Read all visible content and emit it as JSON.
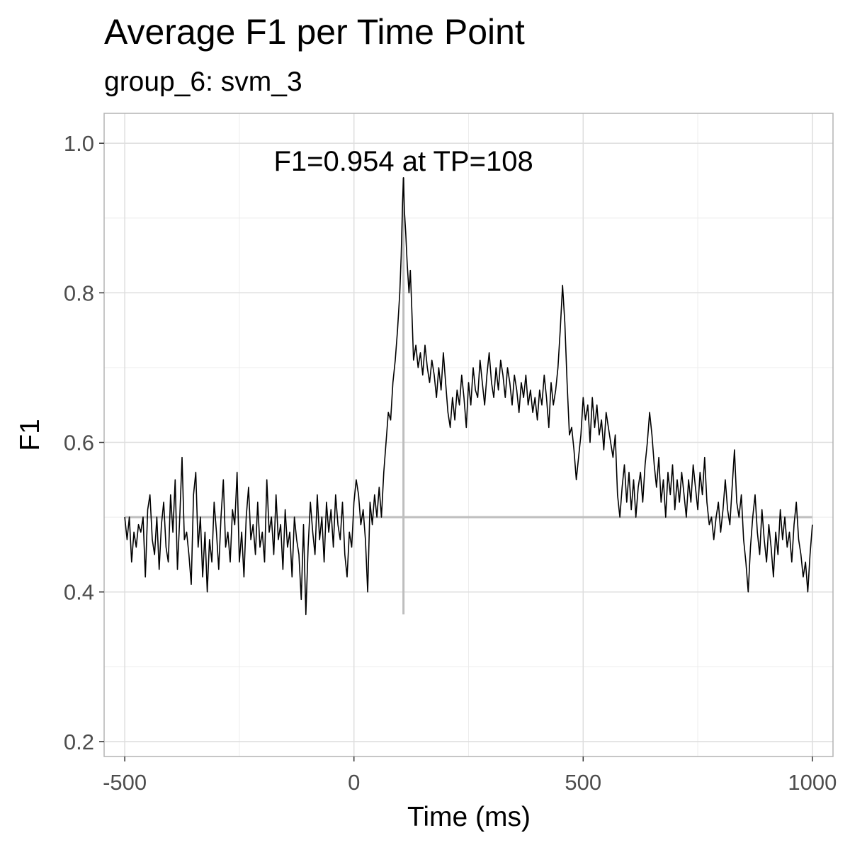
{
  "chart_data": {
    "type": "line",
    "title": "Average F1 per Time Point",
    "subtitle": "group_6: svm_3",
    "xlabel": "Time (ms)",
    "ylabel": "F1",
    "xlim": [
      -545,
      1045
    ],
    "ylim": [
      0.18,
      1.04
    ],
    "x_ticks": [
      -500,
      0,
      500,
      1000
    ],
    "x_tick_labels": [
      "-500",
      "0",
      "500",
      "1000"
    ],
    "y_ticks": [
      0.2,
      0.4,
      0.6,
      0.8,
      1.0
    ],
    "y_tick_labels": [
      "0.2",
      "0.4",
      "0.6",
      "0.8",
      "1.0"
    ],
    "grid": true,
    "reference_lines": {
      "chance_level": 0.5,
      "peak_time": 108,
      "peak_line_bottom": 0.37
    },
    "annotation": "F1=0.954 at TP=108",
    "series": [
      {
        "line_color": "#000000",
        "points": [
          [
            -500,
            0.5
          ],
          [
            -495,
            0.47
          ],
          [
            -490,
            0.5
          ],
          [
            -485,
            0.44
          ],
          [
            -480,
            0.48
          ],
          [
            -475,
            0.46
          ],
          [
            -470,
            0.49
          ],
          [
            -465,
            0.48
          ],
          [
            -460,
            0.5
          ],
          [
            -455,
            0.42
          ],
          [
            -450,
            0.51
          ],
          [
            -445,
            0.53
          ],
          [
            -440,
            0.47
          ],
          [
            -435,
            0.45
          ],
          [
            -430,
            0.5
          ],
          [
            -425,
            0.43
          ],
          [
            -420,
            0.49
          ],
          [
            -415,
            0.52
          ],
          [
            -410,
            0.46
          ],
          [
            -405,
            0.44
          ],
          [
            -400,
            0.53
          ],
          [
            -395,
            0.48
          ],
          [
            -390,
            0.55
          ],
          [
            -385,
            0.43
          ],
          [
            -380,
            0.5
          ],
          [
            -375,
            0.58
          ],
          [
            -370,
            0.47
          ],
          [
            -365,
            0.48
          ],
          [
            -360,
            0.45
          ],
          [
            -355,
            0.41
          ],
          [
            -350,
            0.53
          ],
          [
            -345,
            0.56
          ],
          [
            -340,
            0.46
          ],
          [
            -335,
            0.5
          ],
          [
            -330,
            0.42
          ],
          [
            -325,
            0.48
          ],
          [
            -320,
            0.4
          ],
          [
            -315,
            0.47
          ],
          [
            -310,
            0.44
          ],
          [
            -305,
            0.52
          ],
          [
            -300,
            0.48
          ],
          [
            -295,
            0.43
          ],
          [
            -290,
            0.5
          ],
          [
            -285,
            0.55
          ],
          [
            -280,
            0.46
          ],
          [
            -275,
            0.48
          ],
          [
            -270,
            0.44
          ],
          [
            -265,
            0.51
          ],
          [
            -260,
            0.49
          ],
          [
            -255,
            0.56
          ],
          [
            -250,
            0.44
          ],
          [
            -245,
            0.48
          ],
          [
            -240,
            0.42
          ],
          [
            -235,
            0.5
          ],
          [
            -230,
            0.54
          ],
          [
            -225,
            0.47
          ],
          [
            -220,
            0.49
          ],
          [
            -215,
            0.45
          ],
          [
            -210,
            0.52
          ],
          [
            -205,
            0.46
          ],
          [
            -200,
            0.48
          ],
          [
            -195,
            0.44
          ],
          [
            -190,
            0.55
          ],
          [
            -185,
            0.48
          ],
          [
            -180,
            0.5
          ],
          [
            -175,
            0.45
          ],
          [
            -170,
            0.53
          ],
          [
            -165,
            0.47
          ],
          [
            -160,
            0.49
          ],
          [
            -155,
            0.43
          ],
          [
            -150,
            0.51
          ],
          [
            -145,
            0.46
          ],
          [
            -140,
            0.48
          ],
          [
            -135,
            0.42
          ],
          [
            -130,
            0.5
          ],
          [
            -125,
            0.47
          ],
          [
            -120,
            0.45
          ],
          [
            -115,
            0.39
          ],
          [
            -110,
            0.49
          ],
          [
            -105,
            0.37
          ],
          [
            -100,
            0.46
          ],
          [
            -95,
            0.52
          ],
          [
            -90,
            0.48
          ],
          [
            -85,
            0.45
          ],
          [
            -80,
            0.53
          ],
          [
            -75,
            0.47
          ],
          [
            -70,
            0.5
          ],
          [
            -65,
            0.44
          ],
          [
            -60,
            0.52
          ],
          [
            -55,
            0.48
          ],
          [
            -50,
            0.51
          ],
          [
            -45,
            0.46
          ],
          [
            -40,
            0.53
          ],
          [
            -35,
            0.49
          ],
          [
            -30,
            0.47
          ],
          [
            -25,
            0.52
          ],
          [
            -20,
            0.45
          ],
          [
            -15,
            0.42
          ],
          [
            -10,
            0.48
          ],
          [
            -5,
            0.46
          ],
          [
            0,
            0.52
          ],
          [
            5,
            0.55
          ],
          [
            10,
            0.53
          ],
          [
            15,
            0.49
          ],
          [
            20,
            0.51
          ],
          [
            25,
            0.47
          ],
          [
            30,
            0.4
          ],
          [
            35,
            0.52
          ],
          [
            40,
            0.49
          ],
          [
            45,
            0.53
          ],
          [
            50,
            0.5
          ],
          [
            55,
            0.54
          ],
          [
            60,
            0.5
          ],
          [
            65,
            0.56
          ],
          [
            70,
            0.6
          ],
          [
            75,
            0.64
          ],
          [
            80,
            0.63
          ],
          [
            85,
            0.68
          ],
          [
            90,
            0.71
          ],
          [
            95,
            0.75
          ],
          [
            100,
            0.8
          ],
          [
            103,
            0.85
          ],
          [
            106,
            0.92
          ],
          [
            108,
            0.954
          ],
          [
            110,
            0.91
          ],
          [
            113,
            0.88
          ],
          [
            116,
            0.84
          ],
          [
            120,
            0.8
          ],
          [
            123,
            0.83
          ],
          [
            126,
            0.78
          ],
          [
            130,
            0.71
          ],
          [
            135,
            0.73
          ],
          [
            140,
            0.7
          ],
          [
            145,
            0.72
          ],
          [
            150,
            0.69
          ],
          [
            155,
            0.73
          ],
          [
            160,
            0.7
          ],
          [
            165,
            0.68
          ],
          [
            170,
            0.71
          ],
          [
            175,
            0.69
          ],
          [
            180,
            0.66
          ],
          [
            185,
            0.7
          ],
          [
            190,
            0.67
          ],
          [
            195,
            0.72
          ],
          [
            200,
            0.68
          ],
          [
            205,
            0.64
          ],
          [
            210,
            0.62
          ],
          [
            215,
            0.66
          ],
          [
            220,
            0.63
          ],
          [
            225,
            0.67
          ],
          [
            230,
            0.65
          ],
          [
            235,
            0.69
          ],
          [
            240,
            0.66
          ],
          [
            245,
            0.62
          ],
          [
            250,
            0.68
          ],
          [
            255,
            0.65
          ],
          [
            260,
            0.7
          ],
          [
            265,
            0.67
          ],
          [
            270,
            0.66
          ],
          [
            275,
            0.71
          ],
          [
            280,
            0.68
          ],
          [
            285,
            0.65
          ],
          [
            290,
            0.69
          ],
          [
            295,
            0.72
          ],
          [
            300,
            0.68
          ],
          [
            305,
            0.66
          ],
          [
            310,
            0.7
          ],
          [
            315,
            0.67
          ],
          [
            320,
            0.71
          ],
          [
            325,
            0.69
          ],
          [
            330,
            0.66
          ],
          [
            335,
            0.7
          ],
          [
            340,
            0.68
          ],
          [
            345,
            0.65
          ],
          [
            350,
            0.69
          ],
          [
            355,
            0.67
          ],
          [
            360,
            0.64
          ],
          [
            365,
            0.68
          ],
          [
            370,
            0.66
          ],
          [
            375,
            0.69
          ],
          [
            380,
            0.65
          ],
          [
            385,
            0.67
          ],
          [
            390,
            0.64
          ],
          [
            395,
            0.66
          ],
          [
            400,
            0.63
          ],
          [
            405,
            0.67
          ],
          [
            410,
            0.65
          ],
          [
            415,
            0.69
          ],
          [
            420,
            0.66
          ],
          [
            425,
            0.62
          ],
          [
            430,
            0.68
          ],
          [
            435,
            0.65
          ],
          [
            440,
            0.67
          ],
          [
            445,
            0.7
          ],
          [
            450,
            0.75
          ],
          [
            455,
            0.81
          ],
          [
            460,
            0.76
          ],
          [
            465,
            0.68
          ],
          [
            470,
            0.61
          ],
          [
            475,
            0.62
          ],
          [
            480,
            0.59
          ],
          [
            485,
            0.55
          ],
          [
            490,
            0.58
          ],
          [
            495,
            0.61
          ],
          [
            500,
            0.66
          ],
          [
            505,
            0.63
          ],
          [
            510,
            0.65
          ],
          [
            515,
            0.6
          ],
          [
            520,
            0.66
          ],
          [
            525,
            0.62
          ],
          [
            530,
            0.65
          ],
          [
            535,
            0.61
          ],
          [
            540,
            0.63
          ],
          [
            545,
            0.59
          ],
          [
            550,
            0.64
          ],
          [
            555,
            0.62
          ],
          [
            560,
            0.6
          ],
          [
            565,
            0.58
          ],
          [
            570,
            0.61
          ],
          [
            575,
            0.53
          ],
          [
            580,
            0.5
          ],
          [
            585,
            0.54
          ],
          [
            590,
            0.57
          ],
          [
            595,
            0.52
          ],
          [
            600,
            0.56
          ],
          [
            605,
            0.51
          ],
          [
            610,
            0.55
          ],
          [
            615,
            0.5
          ],
          [
            620,
            0.54
          ],
          [
            625,
            0.56
          ],
          [
            630,
            0.52
          ],
          [
            635,
            0.57
          ],
          [
            640,
            0.6
          ],
          [
            645,
            0.64
          ],
          [
            650,
            0.61
          ],
          [
            655,
            0.57
          ],
          [
            660,
            0.54
          ],
          [
            665,
            0.58
          ],
          [
            670,
            0.52
          ],
          [
            675,
            0.55
          ],
          [
            680,
            0.5
          ],
          [
            685,
            0.56
          ],
          [
            690,
            0.53
          ],
          [
            695,
            0.57
          ],
          [
            700,
            0.51
          ],
          [
            705,
            0.55
          ],
          [
            710,
            0.52
          ],
          [
            715,
            0.56
          ],
          [
            720,
            0.53
          ],
          [
            725,
            0.5
          ],
          [
            730,
            0.55
          ],
          [
            735,
            0.52
          ],
          [
            740,
            0.57
          ],
          [
            745,
            0.54
          ],
          [
            750,
            0.51
          ],
          [
            755,
            0.56
          ],
          [
            760,
            0.53
          ],
          [
            765,
            0.58
          ],
          [
            770,
            0.52
          ],
          [
            775,
            0.49
          ],
          [
            780,
            0.5
          ],
          [
            785,
            0.47
          ],
          [
            790,
            0.5
          ],
          [
            795,
            0.52
          ],
          [
            800,
            0.48
          ],
          [
            805,
            0.51
          ],
          [
            810,
            0.55
          ],
          [
            815,
            0.51
          ],
          [
            820,
            0.49
          ],
          [
            825,
            0.54
          ],
          [
            830,
            0.59
          ],
          [
            835,
            0.52
          ],
          [
            840,
            0.5
          ],
          [
            845,
            0.53
          ],
          [
            850,
            0.47
          ],
          [
            855,
            0.44
          ],
          [
            860,
            0.4
          ],
          [
            865,
            0.46
          ],
          [
            870,
            0.5
          ],
          [
            875,
            0.53
          ],
          [
            880,
            0.48
          ],
          [
            885,
            0.45
          ],
          [
            890,
            0.51
          ],
          [
            895,
            0.47
          ],
          [
            900,
            0.44
          ],
          [
            905,
            0.49
          ],
          [
            910,
            0.46
          ],
          [
            915,
            0.42
          ],
          [
            920,
            0.48
          ],
          [
            925,
            0.45
          ],
          [
            930,
            0.51
          ],
          [
            935,
            0.47
          ],
          [
            940,
            0.5
          ],
          [
            945,
            0.46
          ],
          [
            950,
            0.48
          ],
          [
            955,
            0.44
          ],
          [
            960,
            0.49
          ],
          [
            965,
            0.52
          ],
          [
            970,
            0.47
          ],
          [
            975,
            0.45
          ],
          [
            980,
            0.42
          ],
          [
            985,
            0.44
          ],
          [
            990,
            0.4
          ],
          [
            995,
            0.45
          ],
          [
            1000,
            0.49
          ]
        ]
      }
    ]
  }
}
